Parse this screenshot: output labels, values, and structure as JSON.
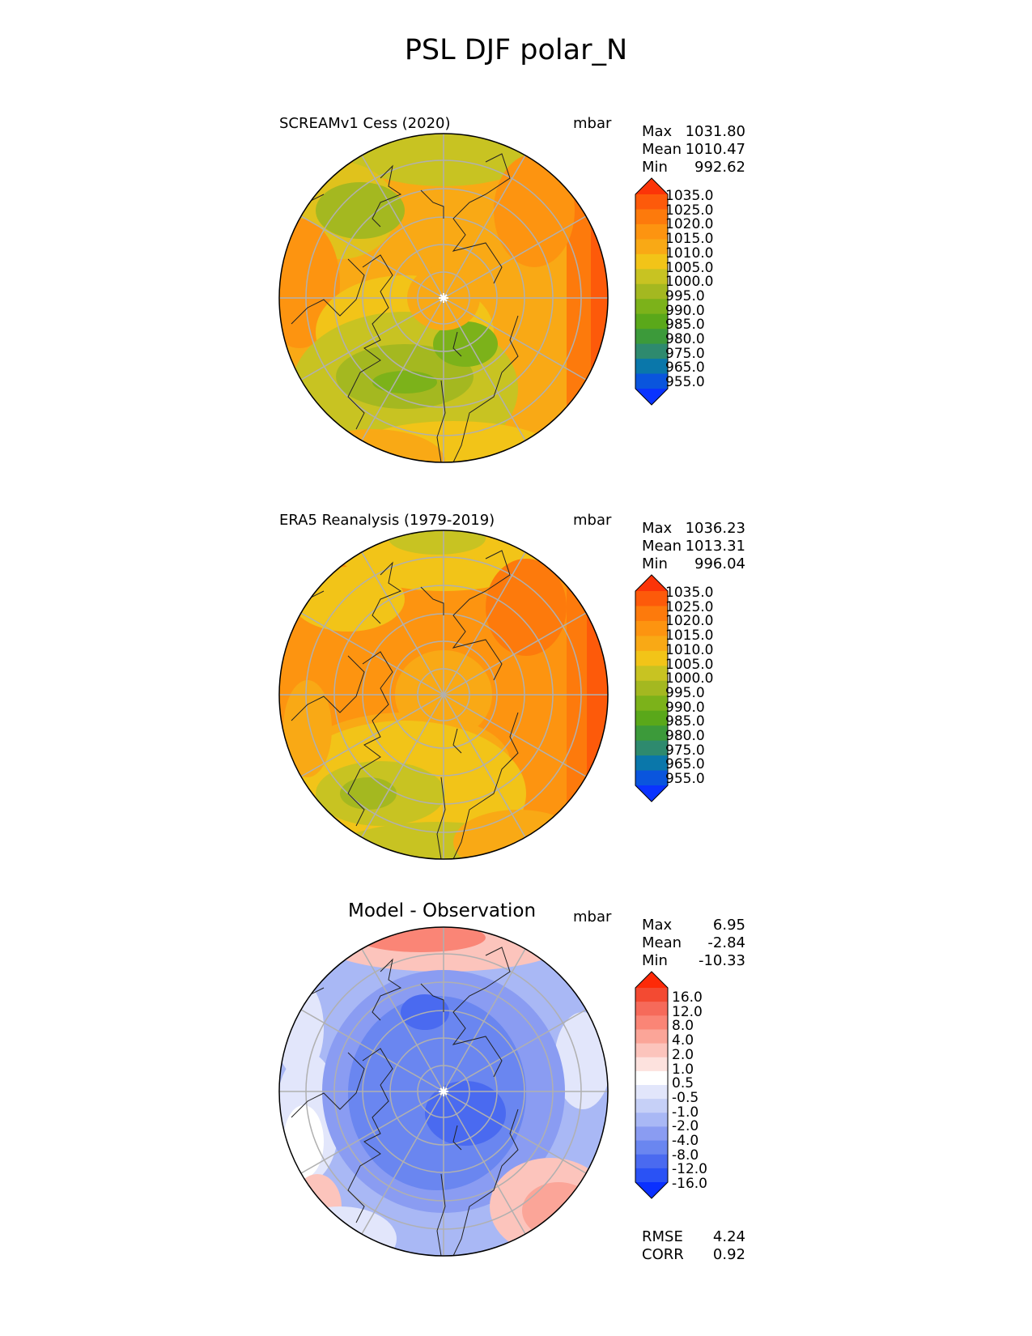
{
  "figure": {
    "title": "PSL DJF polar_N"
  },
  "panels": [
    {
      "id": "test",
      "title": "SCREAMv1 Cess (2020)",
      "units": "mbar",
      "stats": [
        {
          "label": "Max",
          "value": "1031.80"
        },
        {
          "label": "Mean",
          "value": "1010.47"
        },
        {
          "label": "Min",
          "value": "992.62"
        }
      ],
      "colorbar_labels": [
        "1035.0",
        "1025.0",
        "1020.0",
        "1015.0",
        "1010.0",
        "1005.0",
        "1000.0",
        "995.0",
        "990.0",
        "985.0",
        "980.0",
        "975.0",
        "965.0",
        "955.0"
      ]
    },
    {
      "id": "reference",
      "title": "ERA5 Reanalysis (1979-2019)",
      "units": "mbar",
      "stats": [
        {
          "label": "Max",
          "value": "1036.23"
        },
        {
          "label": "Mean",
          "value": "1013.31"
        },
        {
          "label": "Min",
          "value": "996.04"
        }
      ],
      "colorbar_labels": [
        "1035.0",
        "1025.0",
        "1020.0",
        "1015.0",
        "1010.0",
        "1005.0",
        "1000.0",
        "995.0",
        "990.0",
        "985.0",
        "980.0",
        "975.0",
        "965.0",
        "955.0"
      ]
    },
    {
      "id": "diff",
      "title": "Model - Observation",
      "units": "mbar",
      "stats": [
        {
          "label": "Max",
          "value": "6.95"
        },
        {
          "label": "Mean",
          "value": "-2.84"
        },
        {
          "label": "Min",
          "value": "-10.33"
        }
      ],
      "metrics": [
        {
          "label": "RMSE",
          "value": "4.24"
        },
        {
          "label": "CORR",
          "value": "0.92"
        }
      ],
      "colorbar_labels": [
        "16.0",
        "12.0",
        "8.0",
        "4.0",
        "2.0",
        "1.0",
        "0.5",
        "-0.5",
        "-1.0",
        "-2.0",
        "-4.0",
        "-8.0",
        "-12.0",
        "-16.0"
      ]
    }
  ],
  "colors": {
    "psl_scale": [
      "#0a33ff",
      "#0a55dd",
      "#0a77aa",
      "#2e8a6e",
      "#3c9a3a",
      "#5aa81a",
      "#7cb21a",
      "#a4b820",
      "#c8c322",
      "#f2c418",
      "#f9a915",
      "#fd9410",
      "#fd7a0c",
      "#fd5a0a",
      "#fc3408"
    ],
    "diff_scale": [
      "#0a30ff",
      "#2a52f5",
      "#4a6af0",
      "#6a86f0",
      "#8a9cf2",
      "#a9b8f5",
      "#c6d0f7",
      "#e2e6fb",
      "#ffffff",
      "#fde2de",
      "#fcc4bc",
      "#fba598",
      "#fa8576",
      "#f66a5a",
      "#f34a32",
      "#fd2a08"
    ],
    "frame": "#000000",
    "graticule": "#b0b0b0"
  },
  "chart_data": [
    {
      "type": "heatmap",
      "projection": "north-polar-stereographic",
      "title": "SCREAMv1 Cess (2020)",
      "variable": "PSL",
      "season": "DJF",
      "units": "mbar",
      "levels": [
        955,
        965,
        975,
        980,
        985,
        990,
        995,
        1000,
        1005,
        1010,
        1015,
        1020,
        1025,
        1035
      ],
      "max": 1031.8,
      "mean": 1010.47,
      "min": 992.62
    },
    {
      "type": "heatmap",
      "projection": "north-polar-stereographic",
      "title": "ERA5 Reanalysis (1979-2019)",
      "variable": "PSL",
      "season": "DJF",
      "units": "mbar",
      "levels": [
        955,
        965,
        975,
        980,
        985,
        990,
        995,
        1000,
        1005,
        1010,
        1015,
        1020,
        1025,
        1035
      ],
      "max": 1036.23,
      "mean": 1013.31,
      "min": 996.04
    },
    {
      "type": "heatmap",
      "projection": "north-polar-stereographic",
      "title": "Model - Observation",
      "variable": "PSL",
      "season": "DJF",
      "units": "mbar",
      "levels": [
        -16,
        -12,
        -8,
        -4,
        -2,
        -1,
        -0.5,
        0.5,
        1,
        2,
        4,
        8,
        12,
        16
      ],
      "max": 6.95,
      "mean": -2.84,
      "min": -10.33,
      "rmse": 4.24,
      "corr": 0.92
    }
  ]
}
